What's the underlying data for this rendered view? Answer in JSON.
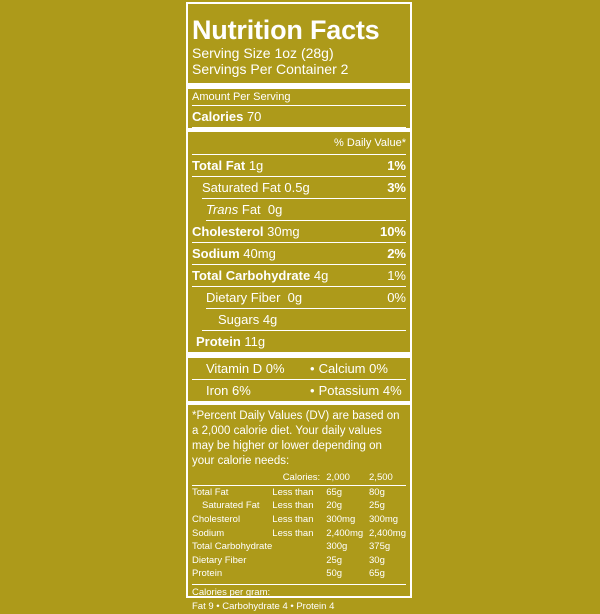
{
  "title": "Nutrition Facts",
  "serving_size": "Serving Size 1oz (28g)",
  "servings_per_container": "Servings Per Container 2",
  "amount_per_serving": "Amount Per Serving",
  "calories": {
    "label": "Calories",
    "value": "70"
  },
  "dv_header": "% Daily Value*",
  "nutrients": [
    {
      "label": "Total Fat",
      "amount": "1g",
      "dv": "1%"
    },
    {
      "label": "Saturated Fat",
      "amount": "0.5g",
      "dv": "3%"
    },
    {
      "label": "Trans",
      "label2": "Fat",
      "amount": "0g"
    },
    {
      "label": "Cholesterol",
      "amount": "30mg",
      "dv": "10%"
    },
    {
      "label": "Sodium",
      "amount": "40mg",
      "dv": "2%"
    },
    {
      "label": "Total Carbohydrate",
      "amount": "4g",
      "dv": "1%"
    },
    {
      "label": "Dietary Fiber",
      "amount": "0g",
      "dv": "0%"
    },
    {
      "label": "Sugars",
      "amount": "4g"
    },
    {
      "label": "Protein",
      "amount": "11g"
    }
  ],
  "vitamins": [
    {
      "left": "Vitamin D 0%",
      "right": "Calcium 0%"
    },
    {
      "left": "Iron 6%",
      "right": "Potassium 4%"
    }
  ],
  "bullet": "•",
  "footnote": "*Percent Daily Values (DV) are based on a 2,000 calorie diet. Your daily values may be higher or lower depending on your calorie needs:",
  "dv_table": {
    "header": [
      "",
      "Calories:",
      "2,000",
      "2,500"
    ],
    "rows": [
      [
        "Total Fat",
        "Less than",
        "65g",
        "80g"
      ],
      [
        "Saturated Fat",
        "Less than",
        "20g",
        "25g"
      ],
      [
        "Cholesterol",
        "Less than",
        "300mg",
        "300mg"
      ],
      [
        "Sodium",
        "Less than",
        "2,400mg",
        "2,400mg"
      ],
      [
        "Total Carbohydrate",
        "",
        "300g",
        "375g"
      ],
      [
        "Dietary Fiber",
        "",
        "25g",
        "30g"
      ],
      [
        "Protein",
        "",
        "50g",
        "65g"
      ]
    ]
  },
  "calories_per_gram": "Calories per gram:",
  "calories_per_gram_values": "Fat 9 • Carbohydrate 4 • Protein 4",
  "colors": {
    "background": "#ad9a1a",
    "foreground": "#ffffff"
  }
}
